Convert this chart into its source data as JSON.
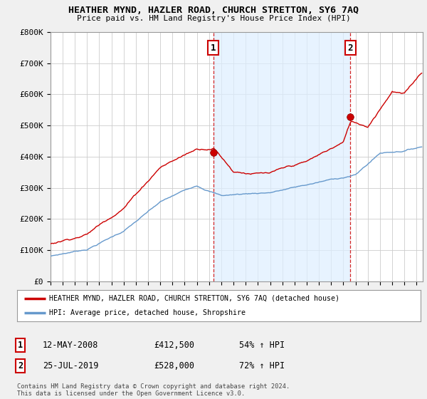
{
  "title": "HEATHER MYND, HAZLER ROAD, CHURCH STRETTON, SY6 7AQ",
  "subtitle": "Price paid vs. HM Land Registry's House Price Index (HPI)",
  "ylabel_ticks": [
    "£0",
    "£100K",
    "£200K",
    "£300K",
    "£400K",
    "£500K",
    "£600K",
    "£700K",
    "£800K"
  ],
  "ylim": [
    0,
    800000
  ],
  "xlim_start": 1995.0,
  "xlim_end": 2025.5,
  "sale1_x": 2008.36,
  "sale1_y": 412500,
  "sale1_label": "1",
  "sale2_x": 2019.56,
  "sale2_y": 528000,
  "sale2_label": "2",
  "red_line_color": "#cc0000",
  "blue_line_color": "#6699cc",
  "shade_color": "#ddeeff",
  "background_color": "#f0f0f0",
  "plot_bg_color": "#ffffff",
  "grid_color": "#cccccc",
  "legend_entry1": "HEATHER MYND, HAZLER ROAD, CHURCH STRETTON, SY6 7AQ (detached house)",
  "legend_entry2": "HPI: Average price, detached house, Shropshire",
  "table_row1": [
    "1",
    "12-MAY-2008",
    "£412,500",
    "54% ↑ HPI"
  ],
  "table_row2": [
    "2",
    "25-JUL-2019",
    "£528,000",
    "72% ↑ HPI"
  ],
  "footer": "Contains HM Land Registry data © Crown copyright and database right 2024.\nThis data is licensed under the Open Government Licence v3.0.",
  "dot_color_sale1": "#cc0000",
  "dot_color_sale2": "#cc0000"
}
